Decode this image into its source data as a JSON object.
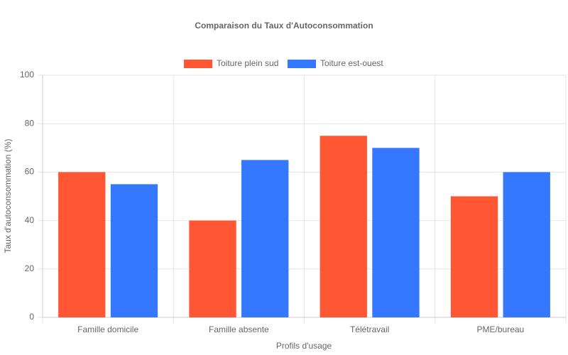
{
  "chart_data": {
    "type": "bar",
    "title": "Comparaison du Taux d'Autoconsommation",
    "x_label": "Profils d'usage",
    "y_label": "Taux d'autoconsommation (%)",
    "categories": [
      "Famille domicile",
      "Famille absente",
      "Télétravail",
      "PME/bureau"
    ],
    "series": [
      {
        "name": "Toiture plein sud",
        "color": "#ff5733",
        "values": [
          60,
          40,
          75,
          50
        ]
      },
      {
        "name": "Toiture est-ouest",
        "color": "#3378ff",
        "values": [
          55,
          65,
          70,
          60
        ]
      }
    ],
    "ylim": [
      0,
      100
    ],
    "yticks": [
      0,
      20,
      40,
      60,
      80,
      100
    ],
    "grid": true,
    "legend": "top"
  }
}
